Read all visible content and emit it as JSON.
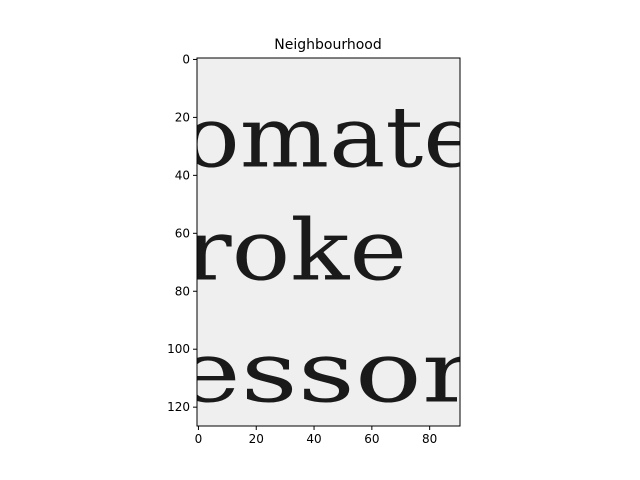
{
  "chart_data": {
    "type": "heatmap",
    "title": "Neighbourhood",
    "xlabel": "",
    "ylabel": "",
    "image_width": 91,
    "image_height": 127,
    "xlim": [
      -0.5,
      90.5
    ],
    "ylim": [
      126.5,
      -0.5
    ],
    "y_axis_inverted": true,
    "colormap": "gray",
    "x_ticks": [
      0,
      20,
      40,
      60,
      80
    ],
    "x_tick_labels": [
      "0",
      "20",
      "40",
      "60",
      "80"
    ],
    "y_ticks": [
      0,
      20,
      40,
      60,
      80,
      100,
      120
    ],
    "y_tick_labels": [
      "0",
      "20",
      "40",
      "60",
      "80",
      "100",
      "120"
    ],
    "grid": false,
    "image_text_lines": [
      {
        "text": "omate",
        "baseline_row": 37
      },
      {
        "text": "roke",
        "baseline_row": 76
      },
      {
        "text": "essor",
        "baseline_row": 118
      }
    ]
  }
}
